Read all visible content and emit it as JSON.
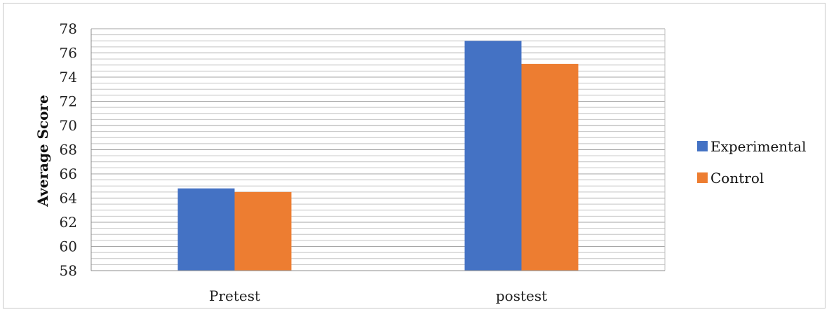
{
  "chart_data": {
    "type": "bar",
    "categories": [
      "Pretest",
      "postest"
    ],
    "series": [
      {
        "name": "Experimental",
        "color": "#4472C4",
        "values": [
          64.8,
          77.0
        ]
      },
      {
        "name": "Control",
        "color": "#ED7D31",
        "values": [
          64.5,
          75.1
        ]
      }
    ],
    "xlabel": "",
    "ylabel": "Average Score",
    "ylim": [
      58,
      78
    ],
    "yticks": [
      58,
      60,
      62,
      64,
      66,
      68,
      70,
      72,
      74,
      76,
      78
    ],
    "minor_gridlines": true,
    "legend_position": "right"
  }
}
